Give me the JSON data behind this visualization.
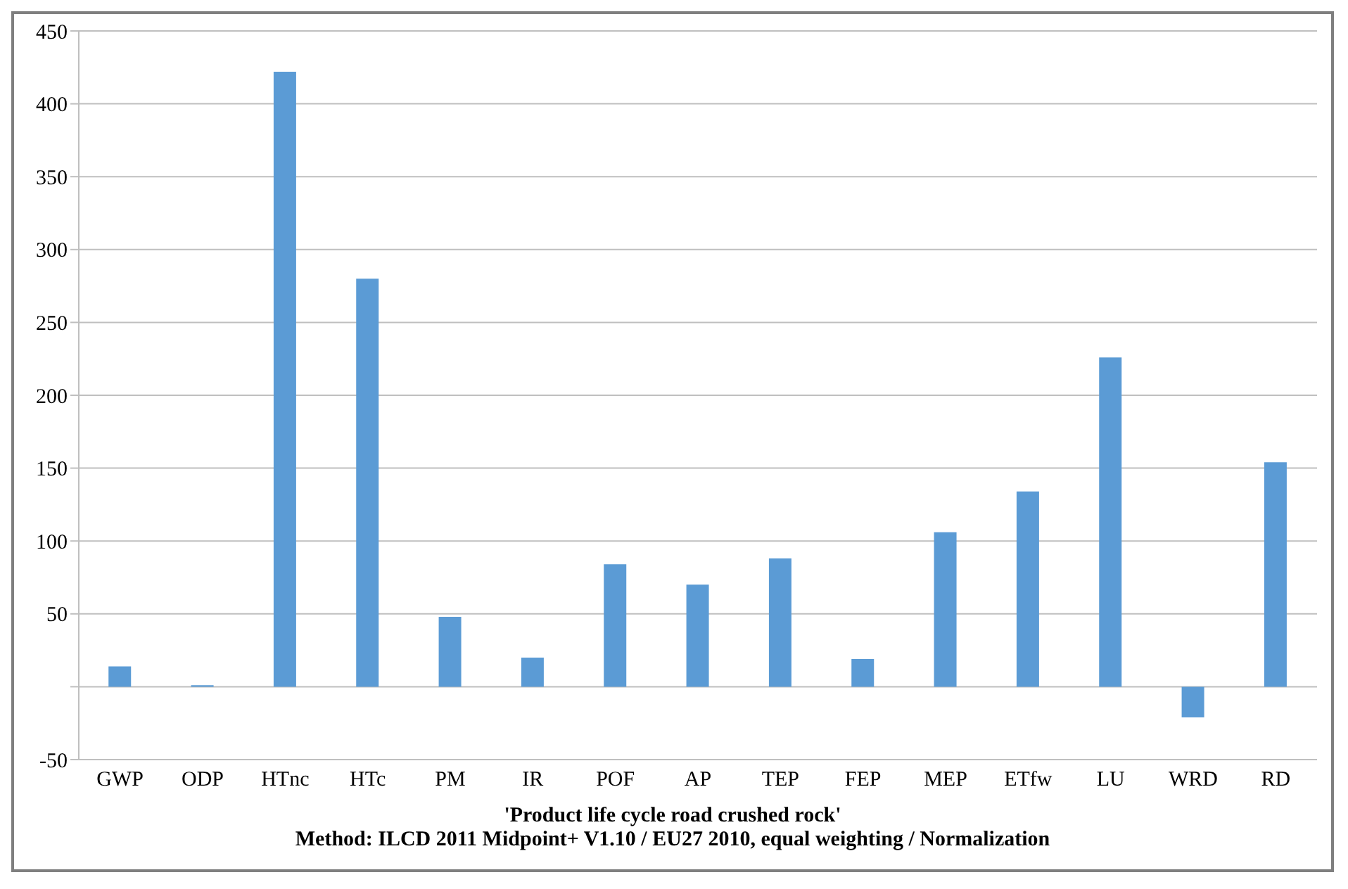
{
  "chart_data": {
    "type": "bar",
    "xlabel": "'Product life cycle road crushed rock'",
    "annotations": [
      "Method: ILCD 2011 Midpoint+ V1.10 / EU27 2010, equal weighting / Normalization"
    ],
    "categories": [
      "GWP",
      "ODP",
      "HTnc",
      "HTc",
      "PM",
      "IR",
      "POF",
      "AP",
      "TEP",
      "FEP",
      "MEP",
      "ETfw",
      "LU",
      "WRD",
      "RD"
    ],
    "values": [
      14,
      1,
      422,
      280,
      48,
      20,
      84,
      70,
      88,
      19,
      106,
      134,
      226,
      -21,
      154
    ],
    "color": "#5b9bd5",
    "ylim": [
      -50,
      450
    ],
    "yticks": [
      -50,
      {
        "value": 0,
        "label": null
      },
      50,
      100,
      150,
      200,
      250,
      300,
      350,
      400,
      450
    ],
    "grid": "y"
  }
}
